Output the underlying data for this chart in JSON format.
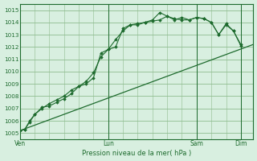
{
  "background_color": "#d8efe0",
  "grid_color_major": "#8fbc8f",
  "grid_color_minor": "#a8d4a8",
  "line_color": "#1e6b2e",
  "title": "Pression niveau de la mer( hPa )",
  "ylim": [
    1004.5,
    1015.5
  ],
  "yticks": [
    1005,
    1006,
    1007,
    1008,
    1009,
    1010,
    1011,
    1012,
    1013,
    1014,
    1015
  ],
  "xtick_labels": [
    "Ven",
    "Lun",
    "Sam",
    "Dim"
  ],
  "xtick_positions": [
    0,
    36,
    72,
    90
  ],
  "xlim": [
    0,
    95
  ],
  "line1_x": [
    0,
    95
  ],
  "line1_y": [
    1005.2,
    1012.2
  ],
  "line2_x": [
    0,
    2,
    4,
    6,
    9,
    12,
    15,
    18,
    21,
    24,
    27,
    30,
    33,
    36,
    39,
    42,
    45,
    48,
    51,
    54,
    57,
    60,
    63,
    66,
    69,
    72,
    75,
    78,
    81,
    84,
    87,
    90
  ],
  "line2_y": [
    1005.2,
    1005.3,
    1006.0,
    1006.5,
    1007.0,
    1007.4,
    1007.7,
    1008.0,
    1008.5,
    1008.8,
    1009.2,
    1009.9,
    1011.2,
    1011.8,
    1012.6,
    1013.3,
    1013.8,
    1013.9,
    1014.0,
    1014.2,
    1014.8,
    1014.5,
    1014.2,
    1014.4,
    1014.2,
    1014.4,
    1014.3,
    1014.0,
    1013.0,
    1013.8,
    1013.3,
    1012.1
  ],
  "line3_x": [
    0,
    2,
    4,
    6,
    9,
    12,
    15,
    18,
    21,
    24,
    27,
    30,
    33,
    36,
    39,
    42,
    45,
    48,
    51,
    54,
    57,
    60,
    63,
    66,
    69,
    72,
    75,
    78,
    81,
    84,
    87,
    90
  ],
  "line3_y": [
    1005.2,
    1005.3,
    1005.9,
    1006.5,
    1007.1,
    1007.2,
    1007.5,
    1007.8,
    1008.2,
    1008.8,
    1009.0,
    1009.5,
    1011.5,
    1011.8,
    1012.0,
    1013.5,
    1013.8,
    1013.8,
    1014.0,
    1014.1,
    1014.2,
    1014.5,
    1014.3,
    1014.2,
    1014.2,
    1014.4,
    1014.3,
    1014.0,
    1013.0,
    1013.9,
    1013.3,
    1012.2
  ]
}
